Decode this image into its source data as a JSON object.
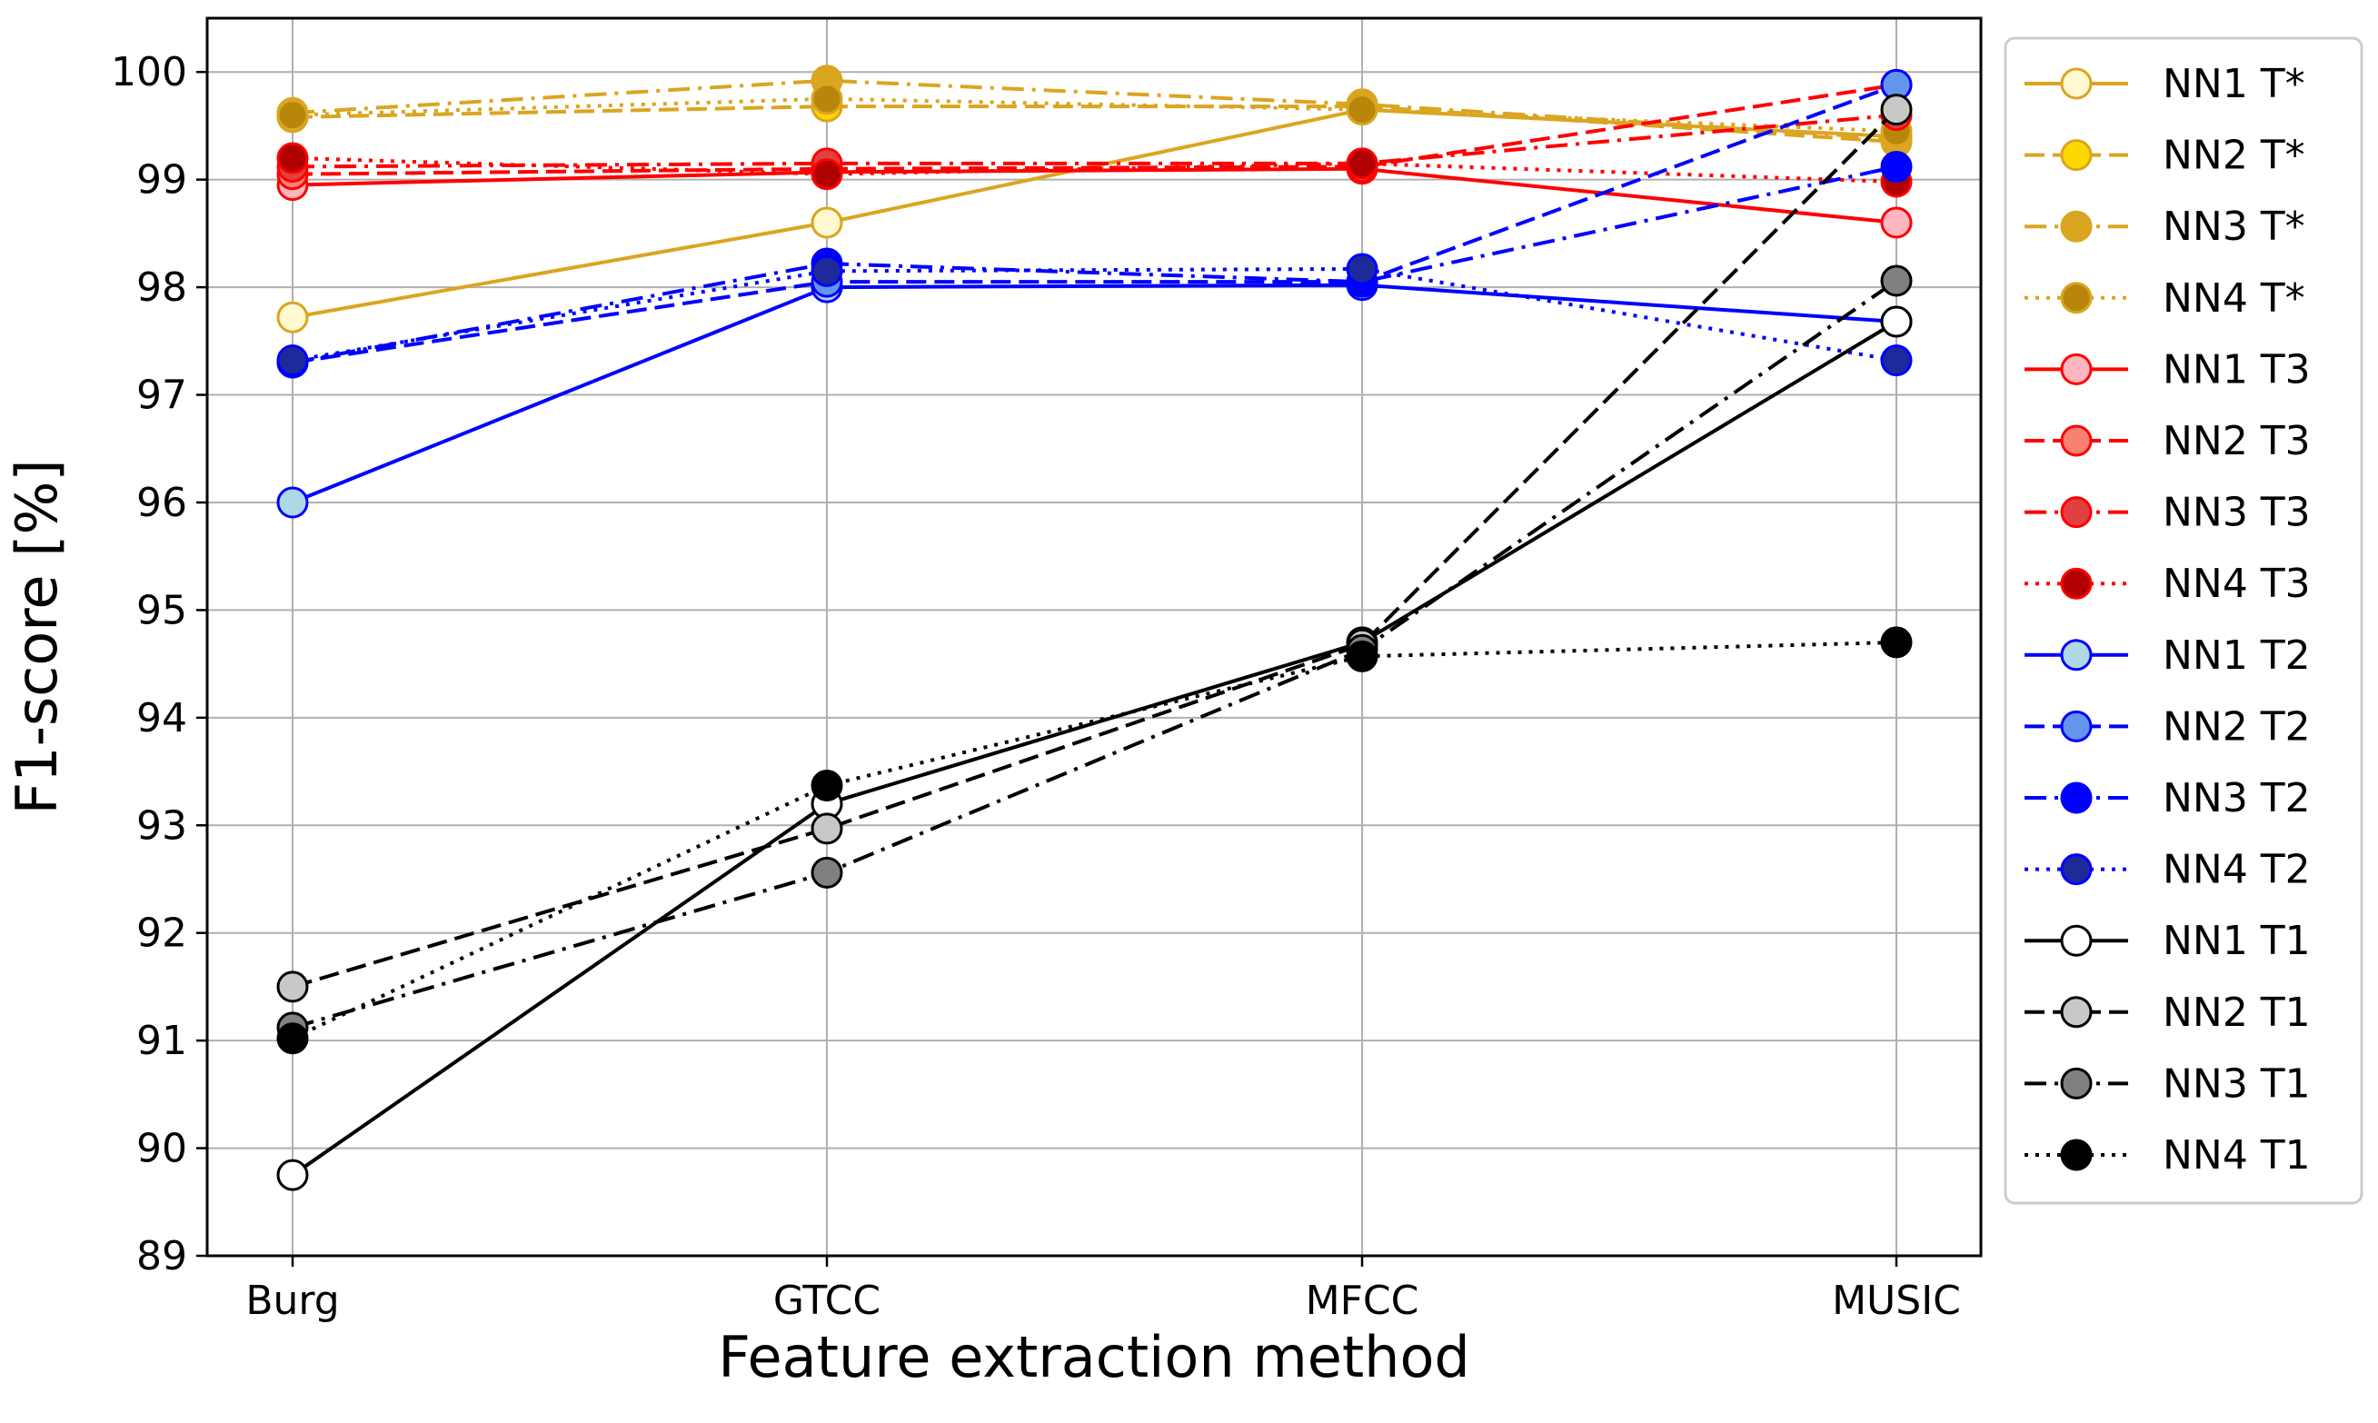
{
  "chart_data": {
    "type": "line",
    "title": "",
    "xlabel": "Feature extraction method",
    "ylabel": "F1-score [%]",
    "categories": [
      "Burg",
      "GTCC",
      "MFCC",
      "MUSIC"
    ],
    "ylim": [
      89,
      100.5
    ],
    "yticks": [
      "89",
      "90",
      "91",
      "92",
      "93",
      "94",
      "95",
      "96",
      "97",
      "98",
      "99",
      "100"
    ],
    "grid": true,
    "legend_position": "right, outside plot",
    "series": [
      {
        "name": "NN1 T*",
        "values": [
          97.72,
          98.6,
          99.65,
          99.4
        ],
        "color": "#DAA520",
        "marker_fill": "#FFF8D0",
        "line_style": "solid"
      },
      {
        "name": "NN2 T*",
        "values": [
          99.58,
          99.68,
          99.68,
          99.35
        ],
        "color": "#DAA520",
        "marker_fill": "#FFD700",
        "line_style": "dashed"
      },
      {
        "name": "NN3 T*",
        "values": [
          99.62,
          99.92,
          99.7,
          99.38
        ],
        "color": "#DAA520",
        "marker_fill": "#DAA520",
        "line_style": "dashdot"
      },
      {
        "name": "NN4 T*",
        "values": [
          99.6,
          99.75,
          99.65,
          99.45
        ],
        "color": "#DAA520",
        "marker_fill": "#B8860B",
        "line_style": "dotted"
      },
      {
        "name": "NN1 T3",
        "values": [
          98.95,
          99.07,
          99.1,
          98.6
        ],
        "color": "#FF0000",
        "marker_fill": "#FFB6C1",
        "line_style": "solid"
      },
      {
        "name": "NN2 T3",
        "values": [
          99.05,
          99.1,
          99.12,
          99.88
        ],
        "color": "#FF0000",
        "marker_fill": "#FA8072",
        "line_style": "dashed"
      },
      {
        "name": "NN3 T3",
        "values": [
          99.12,
          99.15,
          99.15,
          99.6
        ],
        "color": "#FF0000",
        "marker_fill": "#E04040",
        "line_style": "dashdot"
      },
      {
        "name": "NN4 T3",
        "values": [
          99.2,
          99.05,
          99.15,
          98.98
        ],
        "color": "#FF0000",
        "marker_fill": "#B00000",
        "line_style": "dotted"
      },
      {
        "name": "NN1 T2",
        "values": [
          96.0,
          98.0,
          98.02,
          97.68
        ],
        "color": "#0000FF",
        "marker_fill": "#ADD8E6",
        "line_style": "solid"
      },
      {
        "name": "NN2 T2",
        "values": [
          97.3,
          98.05,
          98.05,
          99.88
        ],
        "color": "#0000FF",
        "marker_fill": "#6495ED",
        "line_style": "dashed"
      },
      {
        "name": "NN3 T2",
        "values": [
          97.3,
          98.22,
          98.05,
          99.12
        ],
        "color": "#0000FF",
        "marker_fill": "#0000FF",
        "line_style": "dashdot"
      },
      {
        "name": "NN4 T2",
        "values": [
          97.32,
          98.15,
          98.17,
          97.32
        ],
        "color": "#0000FF",
        "marker_fill": "#1E2A9A",
        "line_style": "dotted"
      },
      {
        "name": "NN1 T1",
        "values": [
          89.75,
          93.2,
          94.7,
          97.68
        ],
        "color": "#000000",
        "marker_fill": "#FFFFFF",
        "line_style": "solid"
      },
      {
        "name": "NN2 T1",
        "values": [
          91.5,
          92.97,
          94.68,
          99.65
        ],
        "color": "#000000",
        "marker_fill": "#C8C8C8",
        "line_style": "dashed"
      },
      {
        "name": "NN3 T1",
        "values": [
          91.12,
          92.56,
          94.63,
          98.06
        ],
        "color": "#000000",
        "marker_fill": "#808080",
        "line_style": "dashdot"
      },
      {
        "name": "NN4 T1",
        "values": [
          91.02,
          93.37,
          94.57,
          94.7
        ],
        "color": "#000000",
        "marker_fill": "#000000",
        "line_style": "dotted"
      }
    ]
  }
}
